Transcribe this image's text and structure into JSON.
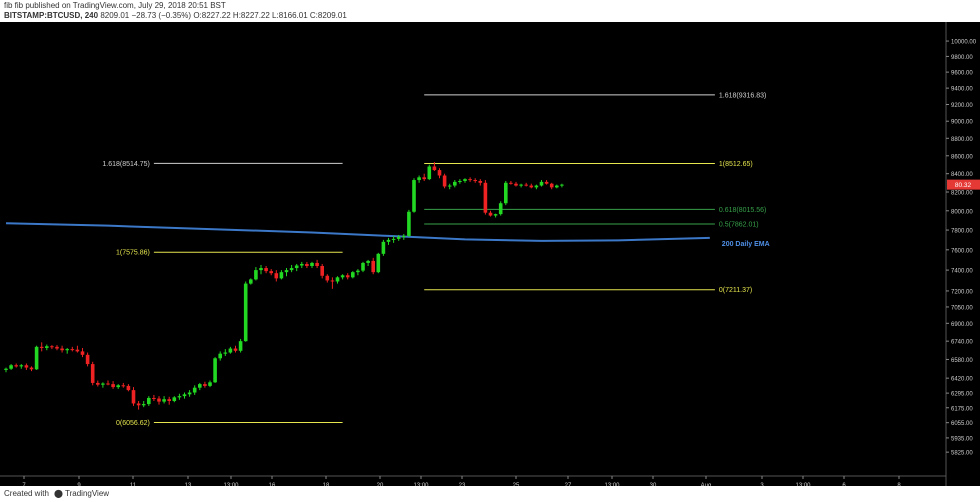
{
  "header": {
    "line1": "fib fib published on TradingView.com, July 29, 2018 20:51 BST",
    "symbol": "BITSTAMP:BTCUSD, 240",
    "last_price": "8209.01",
    "change": "−28.73 (−0.35%)",
    "ohlc": "O:8227.22 H:8227.22 L:8166.01 C:8209.01"
  },
  "footer": {
    "created_with": "Created with",
    "brand": "TradingView"
  },
  "colors": {
    "bull": "#22d822",
    "bear": "#ee2222",
    "ema": "#3c78c8",
    "fib_yellow": "#e6e64e",
    "fib_green": "#37a04a",
    "fib_white": "#d0d0d0",
    "price_tag": "#e53935"
  },
  "chart_data": {
    "type": "candlestick",
    "title": "",
    "y_scale": "log",
    "ylim": [
      5750,
      10200
    ],
    "yticks": [
      "10000.00",
      "9800.00",
      "9600.00",
      "9400.00",
      "9200.00",
      "9000.00",
      "8800.00",
      "8600.00",
      "8400.00",
      "8200.00",
      "8000.00",
      "7800.00",
      "7600.00",
      "7400.00",
      "7200.00",
      "7050.00",
      "6900.00",
      "6740.00",
      "6580.00",
      "6420.00",
      "6295.00",
      "6175.00",
      "6055.00",
      "5935.00",
      "5825.00"
    ],
    "xticks": [
      "7",
      "9",
      "11",
      "13",
      "13:00",
      "16",
      "18",
      "20",
      "13:00",
      "23",
      "25",
      "27",
      "13:00",
      "30",
      "Aug",
      "3",
      "13:00",
      "6",
      "8"
    ],
    "current_price_label": "80.32",
    "candles": [
      [
        6490,
        6510,
        6470,
        6500
      ],
      [
        6500,
        6540,
        6490,
        6530
      ],
      [
        6530,
        6545,
        6510,
        6520
      ],
      [
        6520,
        6540,
        6500,
        6530
      ],
      [
        6530,
        6545,
        6490,
        6510
      ],
      [
        6510,
        6520,
        6480,
        6495
      ],
      [
        6495,
        6700,
        6490,
        6690
      ],
      [
        6690,
        6730,
        6650,
        6680
      ],
      [
        6680,
        6710,
        6660,
        6695
      ],
      [
        6695,
        6705,
        6670,
        6690
      ],
      [
        6690,
        6705,
        6660,
        6675
      ],
      [
        6675,
        6700,
        6640,
        6660
      ],
      [
        6660,
        6680,
        6630,
        6670
      ],
      [
        6670,
        6690,
        6650,
        6665
      ],
      [
        6665,
        6700,
        6640,
        6650
      ],
      [
        6650,
        6680,
        6600,
        6620
      ],
      [
        6620,
        6640,
        6520,
        6540
      ],
      [
        6540,
        6560,
        6360,
        6380
      ],
      [
        6380,
        6400,
        6350,
        6365
      ],
      [
        6365,
        6385,
        6340,
        6375
      ],
      [
        6375,
        6400,
        6360,
        6370
      ],
      [
        6370,
        6395,
        6330,
        6345
      ],
      [
        6345,
        6370,
        6330,
        6360
      ],
      [
        6360,
        6380,
        6340,
        6355
      ],
      [
        6355,
        6370,
        6310,
        6320
      ],
      [
        6320,
        6345,
        6190,
        6210
      ],
      [
        6210,
        6230,
        6160,
        6195
      ],
      [
        6195,
        6230,
        6180,
        6205
      ],
      [
        6205,
        6270,
        6190,
        6255
      ],
      [
        6255,
        6280,
        6230,
        6250
      ],
      [
        6250,
        6270,
        6200,
        6225
      ],
      [
        6225,
        6270,
        6210,
        6245
      ],
      [
        6245,
        6265,
        6200,
        6230
      ],
      [
        6230,
        6270,
        6220,
        6260
      ],
      [
        6260,
        6290,
        6240,
        6270
      ],
      [
        6270,
        6300,
        6250,
        6285
      ],
      [
        6285,
        6320,
        6265,
        6300
      ],
      [
        6300,
        6360,
        6280,
        6340
      ],
      [
        6340,
        6380,
        6320,
        6370
      ],
      [
        6370,
        6390,
        6340,
        6355
      ],
      [
        6355,
        6400,
        6345,
        6385
      ],
      [
        6385,
        6600,
        6380,
        6590
      ],
      [
        6590,
        6650,
        6570,
        6630
      ],
      [
        6630,
        6670,
        6610,
        6640
      ],
      [
        6640,
        6690,
        6630,
        6675
      ],
      [
        6675,
        6700,
        6640,
        6655
      ],
      [
        6655,
        6760,
        6640,
        6740
      ],
      [
        6740,
        7290,
        6735,
        7270
      ],
      [
        7270,
        7320,
        7260,
        7310
      ],
      [
        7310,
        7430,
        7300,
        7400
      ],
      [
        7400,
        7450,
        7360,
        7420
      ],
      [
        7420,
        7440,
        7370,
        7390
      ],
      [
        7390,
        7410,
        7350,
        7370
      ],
      [
        7370,
        7400,
        7290,
        7320
      ],
      [
        7320,
        7400,
        7310,
        7380
      ],
      [
        7380,
        7420,
        7340,
        7400
      ],
      [
        7400,
        7450,
        7380,
        7420
      ],
      [
        7420,
        7460,
        7390,
        7445
      ],
      [
        7445,
        7480,
        7420,
        7460
      ],
      [
        7460,
        7480,
        7420,
        7440
      ],
      [
        7440,
        7480,
        7420,
        7470
      ],
      [
        7470,
        7500,
        7420,
        7440
      ],
      [
        7440,
        7460,
        7320,
        7345
      ],
      [
        7345,
        7360,
        7280,
        7300
      ],
      [
        7300,
        7330,
        7220,
        7290
      ],
      [
        7290,
        7340,
        7270,
        7330
      ],
      [
        7330,
        7360,
        7310,
        7350
      ],
      [
        7350,
        7370,
        7310,
        7330
      ],
      [
        7330,
        7390,
        7320,
        7380
      ],
      [
        7380,
        7410,
        7350,
        7395
      ],
      [
        7395,
        7480,
        7380,
        7470
      ],
      [
        7470,
        7500,
        7440,
        7490
      ],
      [
        7490,
        7520,
        7360,
        7380
      ],
      [
        7380,
        7570,
        7370,
        7560
      ],
      [
        7560,
        7700,
        7540,
        7680
      ],
      [
        7680,
        7720,
        7650,
        7700
      ],
      [
        7700,
        7740,
        7670,
        7710
      ],
      [
        7710,
        7750,
        7690,
        7730
      ],
      [
        7730,
        7760,
        7700,
        7740
      ],
      [
        7740,
        8010,
        7730,
        7990
      ],
      [
        7990,
        8350,
        7980,
        8330
      ],
      [
        8330,
        8380,
        8300,
        8360
      ],
      [
        8360,
        8400,
        8320,
        8340
      ],
      [
        8340,
        8500,
        8330,
        8480
      ],
      [
        8480,
        8530,
        8430,
        8440
      ],
      [
        8440,
        8460,
        8350,
        8380
      ],
      [
        8380,
        8400,
        8240,
        8260
      ],
      [
        8260,
        8290,
        8230,
        8270
      ],
      [
        8270,
        8330,
        8250,
        8310
      ],
      [
        8310,
        8340,
        8290,
        8320
      ],
      [
        8320,
        8350,
        8300,
        8340
      ],
      [
        8340,
        8360,
        8310,
        8330
      ],
      [
        8330,
        8350,
        8300,
        8320
      ],
      [
        8320,
        8340,
        8270,
        8300
      ],
      [
        8300,
        8330,
        7960,
        7980
      ],
      [
        7980,
        8000,
        7940,
        7950
      ],
      [
        7950,
        7970,
        7930,
        7965
      ],
      [
        7965,
        8100,
        7950,
        8080
      ],
      [
        8080,
        8320,
        8060,
        8300
      ],
      [
        8300,
        8320,
        8280,
        8290
      ],
      [
        8290,
        8310,
        8260,
        8270
      ],
      [
        8270,
        8290,
        8250,
        8280
      ],
      [
        8280,
        8300,
        8260,
        8270
      ],
      [
        8270,
        8290,
        8240,
        8250
      ],
      [
        8250,
        8280,
        8230,
        8270
      ],
      [
        8270,
        8330,
        8260,
        8310
      ],
      [
        8310,
        8330,
        8280,
        8290
      ],
      [
        8290,
        8300,
        8230,
        8250
      ],
      [
        8250,
        8280,
        8240,
        8270
      ],
      [
        8270,
        8290,
        8250,
        8280
      ]
    ],
    "ema_label": "200 Daily EMA",
    "ema": [
      [
        0,
        7870
      ],
      [
        20,
        7845
      ],
      [
        40,
        7810
      ],
      [
        60,
        7775
      ],
      [
        75,
        7740
      ],
      [
        90,
        7705
      ],
      [
        105,
        7690
      ],
      [
        120,
        7695
      ],
      [
        138,
        7720
      ]
    ],
    "fib_sets": [
      {
        "x_start": 29,
        "x_end": 66,
        "levels": [
          {
            "value": 8514.75,
            "label": "1.618(8514.75)",
            "color": "white"
          },
          {
            "value": 7575.86,
            "label": "1(7575.86)",
            "color": "yellow"
          },
          {
            "value": 6056.62,
            "label": "0(6056.62)",
            "color": "yellow"
          }
        ]
      },
      {
        "x_start": 82,
        "x_end": 139,
        "levels": [
          {
            "value": 9316.83,
            "label": "1.618(9316.83)",
            "color": "white"
          },
          {
            "value": 8512.65,
            "label": "1(8512.65)",
            "color": "yellow"
          },
          {
            "value": 8015.56,
            "label": "0.618(8015.56)",
            "color": "green"
          },
          {
            "value": 7862.01,
            "label": "0.5(7862.01)",
            "color": "green"
          },
          {
            "value": 7211.37,
            "label": "0(7211.37)",
            "color": "yellow"
          }
        ]
      }
    ]
  }
}
